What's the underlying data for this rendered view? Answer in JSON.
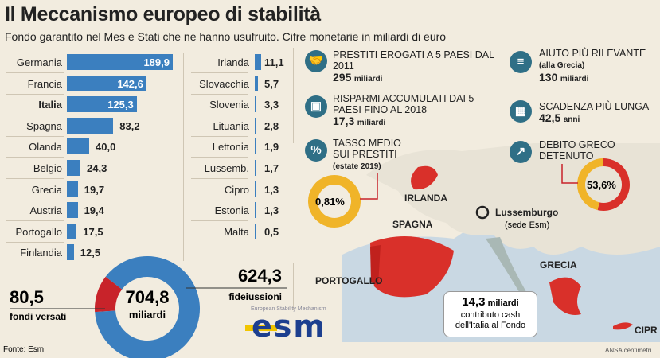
{
  "title": "Il Meccanismo europeo di stabilità",
  "subtitle": "Fondo garantito nel Mes e Stati che ne hanno usufruito. Cifre monetarie in miliardi di euro",
  "chart_data": [
    {
      "type": "bar",
      "orientation": "horizontal",
      "categories": [
        "Germania",
        "Francia",
        "Italia",
        "Spagna",
        "Olanda",
        "Belgio",
        "Grecia",
        "Austria",
        "Portogallo",
        "Finlandia"
      ],
      "values": [
        189.9,
        142.6,
        125.3,
        83.2,
        40.0,
        24.3,
        19.7,
        19.4,
        17.5,
        12.5
      ],
      "labels": [
        "189,9",
        "142,6",
        "125,3",
        "83,2",
        "40,0",
        "24,3",
        "19,7",
        "19,4",
        "17,5",
        "12,5"
      ],
      "color": "#3b7fbf"
    },
    {
      "type": "bar",
      "orientation": "horizontal",
      "categories": [
        "Irlanda",
        "Slovacchia",
        "Slovenia",
        "Lituania",
        "Lettonia",
        "Lussemb.",
        "Cipro",
        "Estonia",
        "Malta"
      ],
      "values": [
        11.1,
        5.7,
        3.3,
        2.8,
        1.9,
        1.7,
        1.3,
        1.3,
        0.5
      ],
      "labels": [
        "11,1",
        "5,7",
        "3,3",
        "2,8",
        "1,9",
        "1,7",
        "1,3",
        "1,3",
        "0,5"
      ],
      "color": "#3b7fbf"
    },
    {
      "type": "pie",
      "donut": true,
      "total_label": "704,8",
      "total_unit": "miliardi",
      "slices": [
        {
          "label": "fideiussioni",
          "value": 624.3,
          "value_label": "624,3",
          "color": "#3b7fbf"
        },
        {
          "label": "fondi versati",
          "value": 80.5,
          "value_label": "80,5",
          "color": "#c8232a"
        }
      ]
    },
    {
      "type": "pie",
      "donut": true,
      "center_label": "0,81%",
      "value": 0.81,
      "color": "#f0b429"
    },
    {
      "type": "pie",
      "donut": true,
      "center_label": "53,6%",
      "value": 53.6,
      "colors": [
        "#d9302a",
        "#f0b429"
      ]
    }
  ],
  "facts": [
    {
      "icon": "handshake-icon",
      "title": "PRESTITI EROGATI A 5 PAESI DAL 2011",
      "value": "295",
      "unit": "miliardi"
    },
    {
      "icon": "savings-icon",
      "title": "RISPARMI ACCUMULATI DAI 5 PAESI FINO AL 2018",
      "value": "17,3",
      "unit": "miliardi"
    },
    {
      "icon": "percent-icon",
      "title": "TASSO MEDIO SUI PRESTITI",
      "note": "(estate 2019)"
    },
    {
      "icon": "greek-flag-icon",
      "title": "AIUTO PIÙ RILEVANTE",
      "note": "(alla Grecia)",
      "value": "130",
      "unit": "miliardi"
    },
    {
      "icon": "calendar-icon",
      "title": "SCADENZA PIÙ LUNGA",
      "value": "42,5",
      "unit": "anni"
    },
    {
      "icon": "growth-chart-icon",
      "title": "DEBITO GRECO DETENUTO"
    }
  ],
  "map": {
    "irlanda": "IRLANDA",
    "spagna": "SPAGNA",
    "portogallo": "PORTOGALLO",
    "grecia": "GRECIA",
    "cipro": "CIPR",
    "lux": "Lussemburgo",
    "lux_note": "(sede Esm)",
    "italy_value": "14,3",
    "italy_unit": "miliardi",
    "italy_note1": "contributo cash",
    "italy_note2": "dell'Italia al Fondo"
  },
  "logo": {
    "text": "esm",
    "tagline": "European Stability Mechanism"
  },
  "source": "Fonte: Esm",
  "credit": "ANSA centimetri"
}
